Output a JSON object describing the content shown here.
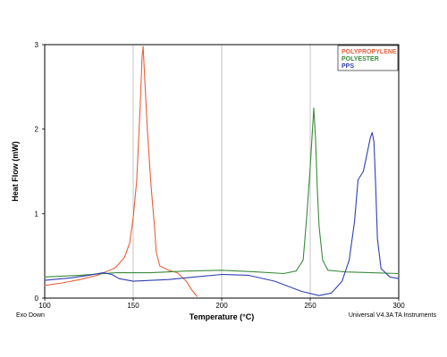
{
  "chart_data": {
    "type": "line",
    "title": "",
    "xlabel": "Temperature (°C)",
    "ylabel": "Heat Flow (mW)",
    "xlim": [
      100,
      300
    ],
    "ylim": [
      0,
      3
    ],
    "x_ticks": [
      "100",
      "150",
      "200",
      "250",
      "300"
    ],
    "y_ticks": [
      "0",
      "1",
      "2",
      "3"
    ],
    "grid": "vertical",
    "legend_position": "top-right",
    "footer_left": "Exo Down",
    "footer_right": "Universal V4.3A TA Instruments",
    "series": [
      {
        "name": "POLYPROPYLENE",
        "color": "#e8603c",
        "points": [
          [
            100,
            0.15
          ],
          [
            110,
            0.18
          ],
          [
            120,
            0.22
          ],
          [
            130,
            0.27
          ],
          [
            140,
            0.36
          ],
          [
            145,
            0.48
          ],
          [
            148,
            0.65
          ],
          [
            150,
            0.95
          ],
          [
            152,
            1.4
          ],
          [
            154,
            2.3
          ],
          [
            155,
            2.85
          ],
          [
            155.6,
            2.98
          ],
          [
            156.5,
            2.6
          ],
          [
            158,
            2.0
          ],
          [
            160,
            1.35
          ],
          [
            161,
            1.1
          ],
          [
            162,
            0.85
          ],
          [
            163,
            0.55
          ],
          [
            165,
            0.38
          ],
          [
            170,
            0.33
          ],
          [
            175,
            0.3
          ],
          [
            180,
            0.2
          ],
          [
            183,
            0.1
          ],
          [
            186,
            0.02
          ]
        ]
      },
      {
        "name": "POLYESTER",
        "color": "#3a8a3a",
        "points": [
          [
            100,
            0.25
          ],
          [
            120,
            0.27
          ],
          [
            140,
            0.3
          ],
          [
            160,
            0.3
          ],
          [
            180,
            0.32
          ],
          [
            200,
            0.33
          ],
          [
            220,
            0.31
          ],
          [
            235,
            0.29
          ],
          [
            242,
            0.32
          ],
          [
            246,
            0.45
          ],
          [
            248,
            0.95
          ],
          [
            250,
            1.55
          ],
          [
            251,
            1.9
          ],
          [
            252,
            2.25
          ],
          [
            253,
            1.9
          ],
          [
            254,
            1.3
          ],
          [
            255,
            0.85
          ],
          [
            257,
            0.45
          ],
          [
            260,
            0.33
          ],
          [
            270,
            0.31
          ],
          [
            285,
            0.3
          ],
          [
            300,
            0.29
          ]
        ]
      },
      {
        "name": "PPS",
        "color": "#3040b0",
        "points": [
          [
            100,
            0.21
          ],
          [
            115,
            0.24
          ],
          [
            125,
            0.27
          ],
          [
            133,
            0.3
          ],
          [
            138,
            0.28
          ],
          [
            142,
            0.23
          ],
          [
            150,
            0.2
          ],
          [
            170,
            0.22
          ],
          [
            185,
            0.25
          ],
          [
            200,
            0.28
          ],
          [
            215,
            0.27
          ],
          [
            230,
            0.2
          ],
          [
            245,
            0.08
          ],
          [
            255,
            0.03
          ],
          [
            262,
            0.06
          ],
          [
            268,
            0.2
          ],
          [
            272,
            0.45
          ],
          [
            275,
            0.9
          ],
          [
            277,
            1.4
          ],
          [
            280,
            1.5
          ],
          [
            282,
            1.7
          ],
          [
            284,
            1.9
          ],
          [
            285,
            1.96
          ],
          [
            286,
            1.85
          ],
          [
            287,
            1.3
          ],
          [
            288,
            0.7
          ],
          [
            290,
            0.35
          ],
          [
            295,
            0.25
          ],
          [
            300,
            0.23
          ]
        ]
      }
    ]
  }
}
